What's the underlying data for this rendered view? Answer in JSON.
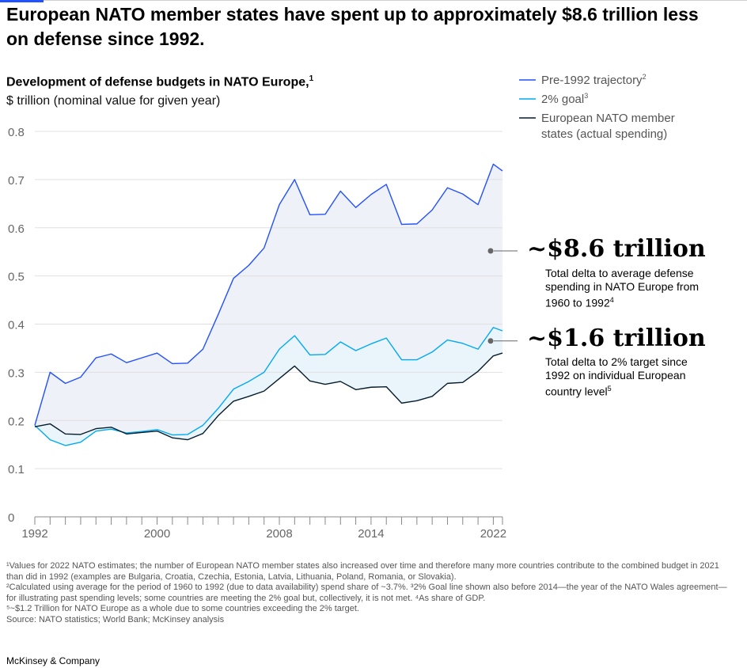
{
  "headline": "European NATO member states have spent up to approximately $8.6 trillion less on defense since 1992.",
  "subtitle": "Development of defense budgets in NATO Europe,",
  "subtitle_note": "1",
  "units": "$ trillion (nominal value for given year)",
  "annotations": [
    {
      "value": "~$8.6 trillion",
      "desc": "Total delta to average defense spending in NATO Europe from 1960 to 1992",
      "note": "4"
    },
    {
      "value": "~$1.6 trillion",
      "desc": "Total delta to 2% target since 1992 on individual European country level",
      "note": "5"
    }
  ],
  "footnotes": [
    "¹Values for 2022 NATO estimates; the number of European NATO member states also increased over time and therefore many more countries contribute to the combined budget in 2021 than did in 1992 (examples are Bulgaria, Croatia, Czechia, Estonia, Latvia, Lithuania, Poland, Romania, or Slovakia).",
    "²Calculated using average for the period of 1960 to 1992 (due to data availability) spend share of ~3.7%. ³2% Goal line shown also before 2014—the year of the NATO Wales agreement—for illustrating past spending levels; some countries are meeting the 2% goal but, collectively, it is not met. ⁴As share of GDP.",
    "⁵~$1.2 Trillion for NATO Europe as a whole due to some countries exceeding the 2% target.",
    "Source: NATO statistics; World Bank; McKinsey analysis"
  ],
  "brand": "McKinsey & Company",
  "colors": {
    "pre1992": "#2251ff",
    "goal": "#00a9f4",
    "actual": "#051c2c",
    "fill": "#eef1f7",
    "grid": "#e0e0e0"
  },
  "chart_data": {
    "type": "line",
    "title": "Development of defense budgets in NATO Europe",
    "ylabel": "$ trillion (nominal value for given year)",
    "xlim": [
      1992,
      2022
    ],
    "ylim": [
      0,
      0.8
    ],
    "yticks": [
      0,
      0.1,
      0.2,
      0.3,
      0.4,
      0.5,
      0.6,
      0.7,
      0.8
    ],
    "ytick_labels": [
      "0",
      "0.1",
      "0.2",
      "0.3",
      "0.4",
      "0.5",
      "0.6",
      "0.7",
      "0.8"
    ],
    "xtick_labels": [
      {
        "x": 1992,
        "label": "1992"
      },
      {
        "x": 2000,
        "label": "2000"
      },
      {
        "x": 2008,
        "label": "2008"
      },
      {
        "x": 2014,
        "label": "2014"
      },
      {
        "x": 2022,
        "label": "2022"
      }
    ],
    "grid": true,
    "legend_position": "top-right",
    "x": [
      1992,
      1993,
      1994,
      1995,
      1996,
      1997,
      1998,
      1999,
      2000,
      2001,
      2002,
      2003,
      2004,
      2005,
      2006,
      2007,
      2008,
      2009,
      2010,
      2011,
      2012,
      2013,
      2014,
      2015,
      2016,
      2017,
      2018,
      2019,
      2020,
      2021,
      2022,
      2022.6
    ],
    "series": [
      {
        "name": "Pre-1992 trajectory",
        "note": "2",
        "color": "#2251ff",
        "values": [
          0.19,
          0.3,
          0.277,
          0.29,
          0.33,
          0.338,
          0.32,
          0.33,
          0.34,
          0.318,
          0.319,
          0.348,
          0.42,
          0.495,
          0.522,
          0.558,
          0.648,
          0.7,
          0.627,
          0.628,
          0.676,
          0.642,
          0.669,
          0.69,
          0.607,
          0.608,
          0.637,
          0.683,
          0.67,
          0.648,
          0.732,
          0.718
        ]
      },
      {
        "name": "2% goal",
        "note": "3",
        "color": "#00a9f4",
        "values": [
          0.19,
          0.16,
          0.148,
          0.155,
          0.178,
          0.182,
          0.174,
          0.177,
          0.181,
          0.17,
          0.171,
          0.19,
          0.225,
          0.265,
          0.281,
          0.3,
          0.348,
          0.376,
          0.336,
          0.337,
          0.363,
          0.345,
          0.359,
          0.371,
          0.326,
          0.326,
          0.342,
          0.367,
          0.36,
          0.348,
          0.393,
          0.386
        ]
      },
      {
        "name": "European NATO member states (actual spending)",
        "note": "",
        "color": "#051c2c",
        "values": [
          0.187,
          0.193,
          0.172,
          0.171,
          0.183,
          0.186,
          0.172,
          0.175,
          0.178,
          0.164,
          0.16,
          0.173,
          0.21,
          0.24,
          0.25,
          0.261,
          0.287,
          0.313,
          0.282,
          0.275,
          0.281,
          0.264,
          0.269,
          0.27,
          0.236,
          0.241,
          0.25,
          0.277,
          0.279,
          0.302,
          0.334,
          0.34
        ]
      }
    ]
  }
}
